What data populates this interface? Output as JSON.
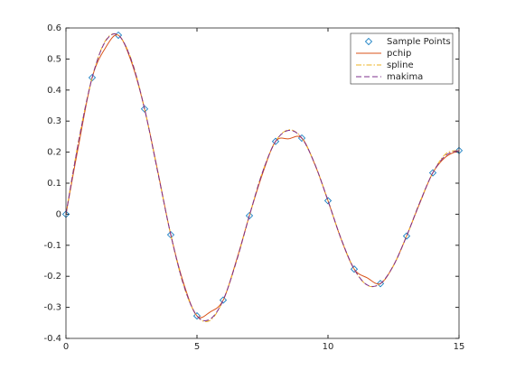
{
  "chart_data": {
    "type": "line",
    "xlim": [
      0,
      15
    ],
    "xticks": [
      0,
      5,
      10,
      15
    ],
    "ylim": [
      -0.4,
      0.6
    ],
    "yticks": [
      -0.4,
      -0.3,
      -0.2,
      -0.1,
      0,
      0.1,
      0.2,
      0.3,
      0.4,
      0.5,
      0.6
    ],
    "legend": "top-right",
    "series": [
      {
        "name": "Sample Points",
        "color": "#0072bd",
        "style": "marker",
        "x": [
          0,
          1,
          2,
          3,
          4,
          5,
          6,
          7,
          8,
          9,
          10,
          11,
          12,
          13,
          14,
          15
        ],
        "values": [
          0,
          0.4401,
          0.5767,
          0.3391,
          -0.066,
          -0.3276,
          -0.2767,
          -0.0047,
          0.2346,
          0.2453,
          0.0435,
          -0.1768,
          -0.2234,
          -0.0703,
          0.1334,
          0.2051
        ]
      },
      {
        "name": "pchip",
        "color": "#d95319",
        "style": "solid",
        "x": [
          0,
          0.5,
          1,
          1.5,
          2,
          2.5,
          3,
          3.5,
          4,
          4.5,
          5,
          5.5,
          6,
          6.5,
          7,
          7.5,
          8,
          8.5,
          9,
          9.5,
          10,
          10.5,
          11,
          11.5,
          12,
          12.5,
          13,
          13.5,
          14,
          14.5,
          15
        ],
        "values": [
          0,
          0.23,
          0.4401,
          0.535,
          0.5767,
          0.49,
          0.3391,
          0.14,
          -0.066,
          -0.225,
          -0.3276,
          -0.315,
          -0.2767,
          -0.15,
          -0.0047,
          0.13,
          0.2346,
          0.243,
          0.2453,
          0.16,
          0.0435,
          -0.08,
          -0.1768,
          -0.205,
          -0.2234,
          -0.165,
          -0.0703,
          0.035,
          0.1334,
          0.185,
          0.2051
        ]
      },
      {
        "name": "spline",
        "color": "#edb120",
        "style": "dashdot",
        "x": [
          0,
          0.5,
          1,
          1.5,
          2,
          2.5,
          3,
          3.5,
          4,
          4.5,
          5,
          5.5,
          6,
          6.5,
          7,
          7.5,
          8,
          8.5,
          9,
          9.5,
          10,
          10.5,
          11,
          11.5,
          12,
          12.5,
          13,
          13.5,
          14,
          14.5,
          15
        ],
        "values": [
          0,
          0.245,
          0.4401,
          0.558,
          0.5767,
          0.497,
          0.3391,
          0.137,
          -0.066,
          -0.232,
          -0.3276,
          -0.342,
          -0.2767,
          -0.154,
          -0.0047,
          0.136,
          0.2346,
          0.272,
          0.2453,
          0.161,
          0.0435,
          -0.079,
          -0.1768,
          -0.229,
          -0.2234,
          -0.166,
          -0.0703,
          0.038,
          0.1334,
          0.195,
          0.2051
        ]
      },
      {
        "name": "makima",
        "color": "#7e2f8e",
        "style": "dashed",
        "x": [
          0,
          0.5,
          1,
          1.5,
          2,
          2.5,
          3,
          3.5,
          4,
          4.5,
          5,
          5.5,
          6,
          6.5,
          7,
          7.5,
          8,
          8.5,
          9,
          9.5,
          10,
          10.5,
          11,
          11.5,
          12,
          12.5,
          13,
          13.5,
          14,
          14.5,
          15
        ],
        "values": [
          0,
          0.242,
          0.4401,
          0.556,
          0.5767,
          0.495,
          0.3391,
          0.137,
          -0.066,
          -0.23,
          -0.3276,
          -0.338,
          -0.2767,
          -0.153,
          -0.0047,
          0.135,
          0.2346,
          0.27,
          0.2453,
          0.161,
          0.0435,
          -0.079,
          -0.1768,
          -0.228,
          -0.2234,
          -0.165,
          -0.0703,
          0.037,
          0.1334,
          0.19,
          0.2051
        ]
      }
    ]
  }
}
